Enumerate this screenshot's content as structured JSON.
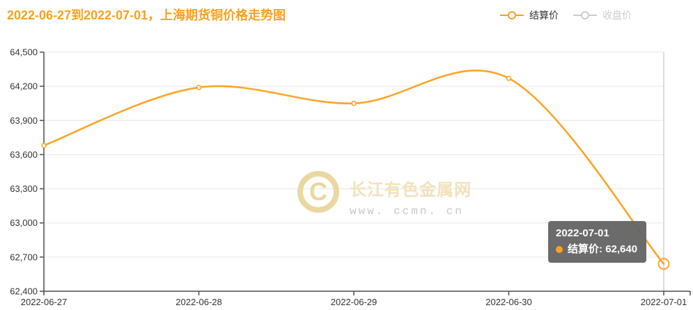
{
  "title": "2022-06-27到2022-07-01，上海期货铜价格走势图",
  "legend": {
    "items": [
      {
        "key": "settlement",
        "label": "结算价",
        "color": "#F9A11D",
        "active": true
      },
      {
        "key": "closing",
        "label": "收盘价",
        "color": "#CCCCCC",
        "active": false
      }
    ]
  },
  "tooltip": {
    "date": "2022-07-01",
    "series": "结算价",
    "value": "62,640"
  },
  "watermark": {
    "name": "长江有色金属网",
    "url": "www. ccmn. cn",
    "logo_glyph": "C"
  },
  "chart_data": {
    "type": "line",
    "title": "2022-06-27到2022-07-01，上海期货铜价格走势图",
    "categories": [
      "2022-06-27",
      "2022-06-28",
      "2022-06-29",
      "2022-06-30",
      "2022-07-01"
    ],
    "series": [
      {
        "name": "结算价",
        "values": [
          63680,
          64190,
          64050,
          64270,
          62640
        ],
        "color": "#FAA627",
        "smooth": true
      },
      {
        "name": "收盘价",
        "values": [],
        "color": "#CCCCCC",
        "hidden": true
      }
    ],
    "xlabel": "",
    "ylabel": "",
    "ylim": [
      62400,
      64500
    ],
    "ytick_step": 300,
    "grid": true,
    "legend_position": "top-right",
    "hover_category": "2022-07-01"
  },
  "colors": {
    "accent": "#F9A11D",
    "line": "#FAA627",
    "axis": "#4D4D4D",
    "axis_label": "#333333",
    "gridline": "#E6E6E6",
    "hover_line": "#DCDCDC",
    "tooltip_bg": "#636363",
    "inactive": "#CCCCCC",
    "watermark": "#EBD7A0"
  }
}
